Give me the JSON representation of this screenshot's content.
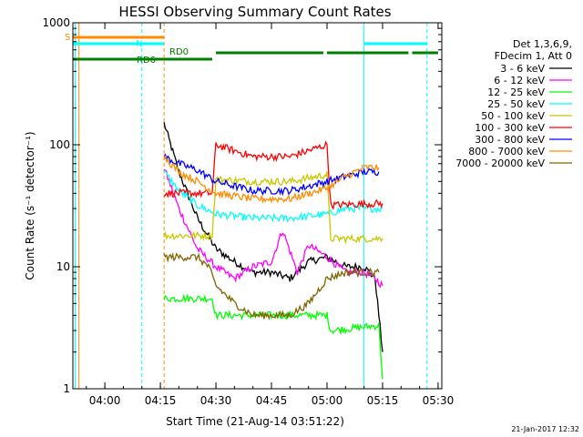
{
  "chart_data": {
    "type": "line",
    "title": "HESSI Observing Summary Count Rates",
    "xlabel": "Start Time (21-Aug-14 03:51:22)",
    "ylabel": "Count Rate (s⁻¹ detector⁻¹)",
    "y_scale": "log",
    "ylim": [
      1,
      1000
    ],
    "xlim": [
      "03:51:22",
      "05:31:00"
    ],
    "x_ticks": [
      "04:00",
      "04:15",
      "04:30",
      "04:45",
      "05:00",
      "05:15",
      "05:30"
    ],
    "y_ticks": [
      "1",
      "10",
      "100",
      "1000"
    ],
    "legend_header": [
      "Det 1,3,6,9,",
      "FDecim 1, Att 0"
    ],
    "timestamp": "21-Jan-2017 12:32",
    "series": [
      {
        "name": "3 - 6 keV",
        "color": "#000000",
        "x": [
          "04:16",
          "04:20",
          "04:25",
          "04:30",
          "04:35",
          "04:40",
          "04:45",
          "04:50",
          "04:55",
          "05:00",
          "05:05",
          "05:10",
          "05:13",
          "05:15"
        ],
        "y": [
          150,
          60,
          25,
          14,
          11,
          9,
          9,
          8,
          11,
          12,
          10,
          10,
          8,
          2
        ]
      },
      {
        "name": "6 - 12 keV",
        "color": "#ff00ff",
        "x": [
          "04:16",
          "04:20",
          "04:25",
          "04:30",
          "04:35",
          "04:40",
          "04:45",
          "04:48",
          "04:52",
          "04:55",
          "05:00",
          "05:05",
          "05:10",
          "05:13",
          "05:15"
        ],
        "y": [
          65,
          30,
          14,
          10,
          8,
          10,
          11,
          20,
          9,
          15,
          12,
          9,
          9,
          8,
          7
        ]
      },
      {
        "name": "12 - 25 keV",
        "color": "#00ff00",
        "x": [
          "04:16",
          "04:29",
          "04:30",
          "05:00",
          "05:01",
          "05:14",
          "05:15"
        ],
        "y": [
          5.5,
          5.5,
          4.0,
          4.0,
          3.0,
          3.3,
          1.2
        ]
      },
      {
        "name": "25 - 50 keV",
        "color": "#00ffff",
        "x": [
          "04:16",
          "04:20",
          "04:25",
          "04:30",
          "04:40",
          "04:50",
          "05:00",
          "05:05",
          "05:10",
          "05:14",
          "05:15"
        ],
        "y": [
          60,
          42,
          32,
          27,
          25,
          25,
          27,
          30,
          30,
          30,
          30
        ]
      },
      {
        "name": "50 - 100 keV",
        "color": "#c8c800",
        "x": [
          "04:16",
          "04:29",
          "04:30",
          "04:40",
          "04:50",
          "05:00",
          "05:01",
          "05:14",
          "05:15"
        ],
        "y": [
          18,
          18,
          52,
          50,
          50,
          57,
          17,
          17,
          17
        ]
      },
      {
        "name": "100 - 300 keV",
        "color": "#ff0000",
        "x": [
          "04:16",
          "04:25",
          "04:29",
          "04:30",
          "04:40",
          "04:50",
          "05:00",
          "05:01",
          "05:14",
          "05:15"
        ],
        "y": [
          40,
          40,
          40,
          100,
          80,
          80,
          100,
          32,
          33,
          33
        ]
      },
      {
        "name": "300 - 800 keV",
        "color": "#0000ff",
        "x": [
          "04:16",
          "04:20",
          "04:25",
          "04:30",
          "04:40",
          "04:50",
          "05:00",
          "05:05",
          "05:10",
          "05:14"
        ],
        "y": [
          80,
          70,
          62,
          50,
          42,
          42,
          50,
          55,
          60,
          60
        ]
      },
      {
        "name": "800 - 7000 keV",
        "color": "#ff8c00",
        "x": [
          "04:16",
          "04:20",
          "04:25",
          "04:30",
          "04:40",
          "04:50",
          "05:00",
          "05:05",
          "05:10",
          "05:14"
        ],
        "y": [
          80,
          60,
          50,
          40,
          36,
          36,
          44,
          55,
          65,
          65
        ]
      },
      {
        "name": "7000 - 20000 keV",
        "color": "#7f6400",
        "x": [
          "04:16",
          "04:25",
          "04:28",
          "04:30",
          "04:35",
          "04:40",
          "04:45",
          "04:50",
          "04:55",
          "05:00",
          "05:05",
          "05:10",
          "05:14"
        ],
        "y": [
          12,
          12,
          10,
          7,
          5,
          4,
          4,
          4,
          5,
          8,
          9,
          9,
          9
        ]
      }
    ],
    "status_bars": [
      {
        "label": "S",
        "color": "#ff8c00",
        "segments": [
          [
            "03:51:22",
            "04:16"
          ]
        ]
      },
      {
        "label": "N",
        "color": "#00ffff",
        "segments": [
          [
            "03:51:22",
            "04:16"
          ],
          [
            "05:10",
            "05:27"
          ]
        ]
      },
      {
        "label": "RD0",
        "color": "#008000",
        "segments": [
          [
            "04:30",
            "04:59"
          ],
          [
            "05:00",
            "05:22"
          ],
          [
            "05:23",
            "05:30"
          ]
        ]
      },
      {
        "label": "RD6",
        "color": "#008000",
        "segments": [
          [
            "03:51:22",
            "04:29"
          ]
        ]
      }
    ],
    "vlines": [
      {
        "time": "03:52",
        "color": "#00ffff",
        "style": "solid"
      },
      {
        "time": "03:53",
        "color": "#ff8c00",
        "style": "solid"
      },
      {
        "time": "04:10",
        "color": "#00ffff",
        "style": "dashed"
      },
      {
        "time": "04:16",
        "color": "#ff8c00",
        "style": "dashed"
      },
      {
        "time": "05:10",
        "color": "#00ffff",
        "style": "solid"
      },
      {
        "time": "05:27",
        "color": "#00ffff",
        "style": "dashed"
      }
    ]
  }
}
